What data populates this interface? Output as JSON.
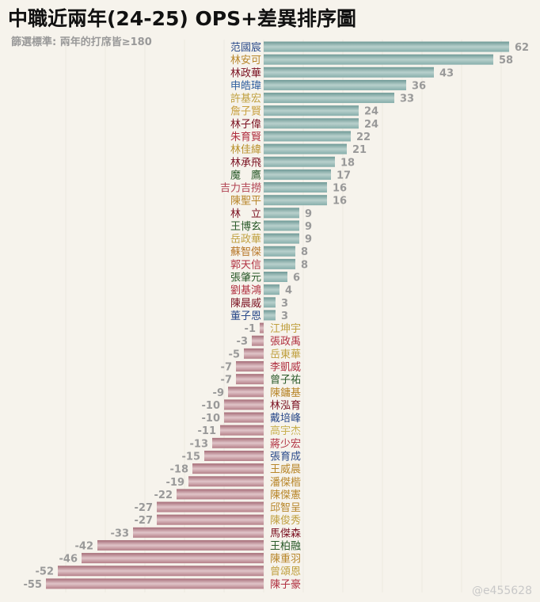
{
  "chart_data": {
    "type": "bar",
    "orientation": "horizontal",
    "title": "中職近兩年(24-25) OPS+差異排序圖",
    "subtitle": "篩選標準: 兩年的打席皆≥180",
    "watermark": "@e455628",
    "xlim": [
      -55,
      62
    ],
    "colors": {
      "positive": "#86aeab",
      "negative": "#b58089"
    },
    "players": [
      {
        "name": "范國宸",
        "value": 62,
        "color": "#2a4a8a"
      },
      {
        "name": "林安可",
        "value": 58,
        "color": "#b8862a"
      },
      {
        "name": "林政華",
        "value": 43,
        "color": "#7a1020"
      },
      {
        "name": "申皓瑋",
        "value": 36,
        "color": "#2f5f9f"
      },
      {
        "name": "許基宏",
        "value": 33,
        "color": "#c0a040"
      },
      {
        "name": "詹子賢",
        "value": 24,
        "color": "#c8a040"
      },
      {
        "name": "林子偉",
        "value": 24,
        "color": "#7a1020"
      },
      {
        "name": "朱育賢",
        "value": 22,
        "color": "#b03040"
      },
      {
        "name": "林佳緯",
        "value": 21,
        "color": "#b8902a"
      },
      {
        "name": "林承飛",
        "value": 18,
        "color": "#7a1020"
      },
      {
        "name": "魔　鷹",
        "value": 17,
        "color": "#2a5a2a"
      },
      {
        "name": "吉力吉撈",
        "value": 16,
        "color": "#b04050"
      },
      {
        "name": "陳聖平",
        "value": 16,
        "color": "#b8862a"
      },
      {
        "name": "林　立",
        "value": 9,
        "color": "#7a1020"
      },
      {
        "name": "王博玄",
        "value": 9,
        "color": "#2a5a2a"
      },
      {
        "name": "岳政華",
        "value": 9,
        "color": "#c0a040"
      },
      {
        "name": "蘇智傑",
        "value": 8,
        "color": "#b8782a"
      },
      {
        "name": "郭天信",
        "value": 8,
        "color": "#b03040"
      },
      {
        "name": "張肇元",
        "value": 6,
        "color": "#2a5a2a"
      },
      {
        "name": "劉基鴻",
        "value": 4,
        "color": "#b03040"
      },
      {
        "name": "陳晨威",
        "value": 3,
        "color": "#7a1020"
      },
      {
        "name": "董子恩",
        "value": 3,
        "color": "#2a4a8a"
      },
      {
        "name": "江坤宇",
        "value": -1,
        "color": "#c0a040"
      },
      {
        "name": "張政禹",
        "value": -3,
        "color": "#b03040"
      },
      {
        "name": "岳東華",
        "value": -5,
        "color": "#c0a040"
      },
      {
        "name": "李凱威",
        "value": -7,
        "color": "#b03040"
      },
      {
        "name": "曾子祐",
        "value": -7,
        "color": "#2a5a2a"
      },
      {
        "name": "陳鏞基",
        "value": -9,
        "color": "#b8862a"
      },
      {
        "name": "林泓育",
        "value": -10,
        "color": "#7a1020"
      },
      {
        "name": "戴培峰",
        "value": -10,
        "color": "#2a4a8a"
      },
      {
        "name": "高宇杰",
        "value": -11,
        "color": "#c8b050"
      },
      {
        "name": "蔣少宏",
        "value": -13,
        "color": "#b03040"
      },
      {
        "name": "張育成",
        "value": -15,
        "color": "#2a4a8a"
      },
      {
        "name": "王威晨",
        "value": -18,
        "color": "#b8862a"
      },
      {
        "name": "潘傑楷",
        "value": -19,
        "color": "#b8862a"
      },
      {
        "name": "陳傑憲",
        "value": -22,
        "color": "#b8862a"
      },
      {
        "name": "邱智呈",
        "value": -27,
        "color": "#b8862a"
      },
      {
        "name": "陳俊秀",
        "value": -27,
        "color": "#c0a040"
      },
      {
        "name": "馬傑森",
        "value": -33,
        "color": "#7a1020"
      },
      {
        "name": "王柏融",
        "value": -42,
        "color": "#2a5a2a"
      },
      {
        "name": "陳重羽",
        "value": -46,
        "color": "#b8862a"
      },
      {
        "name": "曾頌恩",
        "value": -52,
        "color": "#c0a040"
      },
      {
        "name": "陳子豪",
        "value": -55,
        "color": "#b03040"
      }
    ]
  }
}
